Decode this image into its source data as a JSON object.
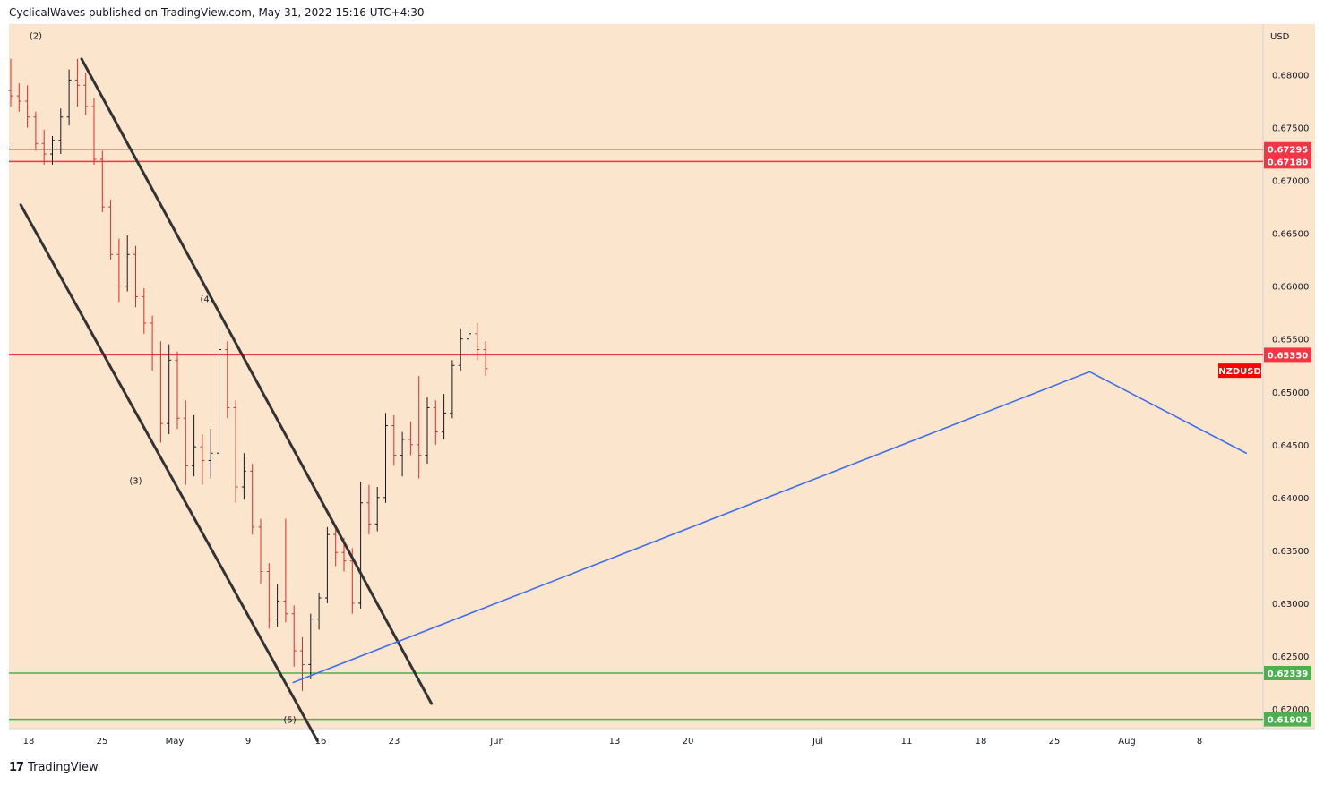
{
  "header": {
    "text": "CyclicalWaves published on TradingView.com, May 31, 2022 15:16 UTC+4:30"
  },
  "footer": {
    "logo": "17",
    "brand": "TradingView"
  },
  "chart_data": {
    "type": "candlestick",
    "symbol": "NZDUSD",
    "currency": "USD",
    "ylim": [
      0.617,
      0.688
    ],
    "y_ticks": [
      "0.68000",
      "0.67500",
      "0.67000",
      "0.66500",
      "0.66000",
      "0.65500",
      "0.65000",
      "0.64500",
      "0.64000",
      "0.63500",
      "0.63000",
      "0.62500",
      "0.62000"
    ],
    "x_ticks": [
      "18",
      "25",
      "May",
      "9",
      "16",
      "23",
      "Jun",
      "13",
      "20",
      "Jul",
      "11",
      "18",
      "25",
      "Aug",
      "8"
    ],
    "price_levels": [
      {
        "value": 0.67295,
        "label": "0.67295",
        "color": "#f23645"
      },
      {
        "value": 0.6718,
        "label": "0.67180",
        "color": "#f23645"
      },
      {
        "value": 0.6535,
        "label": "0.65350",
        "color": "#f23645"
      },
      {
        "value": 0.62339,
        "label": "0.62339",
        "color": "#4caf50"
      },
      {
        "value": 0.61902,
        "label": "0.61902",
        "color": "#4caf50"
      }
    ],
    "symbol_badge": {
      "label": "NZDUSD",
      "value": 0.652,
      "color": "#ff0000"
    },
    "wave_labels": [
      {
        "label": "(2)",
        "day": 3,
        "value": 0.6834
      },
      {
        "label": "(3)",
        "day": 15,
        "value": 0.6413
      },
      {
        "label": "(4)",
        "day": 23.5,
        "value": 0.6585
      },
      {
        "label": "(5)",
        "day": 33.5,
        "value": 0.6187
      }
    ],
    "trendlines": [
      {
        "name": "channel-upper",
        "from": [
          8.5,
          0.6815
        ],
        "to": [
          50.5,
          0.6205
        ],
        "color": "#333333"
      },
      {
        "name": "channel-lower",
        "from": [
          1.2,
          0.6677
        ],
        "to": [
          36.8,
          0.617
        ],
        "color": "#333333"
      },
      {
        "name": "projection-up",
        "from": [
          33.9,
          0.6225
        ],
        "to": [
          129.5,
          0.6519
        ],
        "color": "#3f6ee8"
      },
      {
        "name": "projection-down",
        "from": [
          129.5,
          0.6519
        ],
        "to": [
          148.3,
          0.6442
        ],
        "color": "#3f6ee8"
      }
    ],
    "candles": [
      {
        "o": 0.6785,
        "h": 0.6815,
        "l": 0.677,
        "c": 0.678
      },
      {
        "o": 0.678,
        "h": 0.6792,
        "l": 0.6765,
        "c": 0.6775
      },
      {
        "o": 0.6775,
        "h": 0.679,
        "l": 0.675,
        "c": 0.676
      },
      {
        "o": 0.676,
        "h": 0.6765,
        "l": 0.6728,
        "c": 0.6735
      },
      {
        "o": 0.6735,
        "h": 0.6748,
        "l": 0.6715,
        "c": 0.6725
      },
      {
        "o": 0.6725,
        "h": 0.6742,
        "l": 0.6715,
        "c": 0.6738
      },
      {
        "o": 0.6738,
        "h": 0.6768,
        "l": 0.6725,
        "c": 0.676
      },
      {
        "o": 0.676,
        "h": 0.6805,
        "l": 0.6752,
        "c": 0.6795
      },
      {
        "o": 0.6795,
        "h": 0.6815,
        "l": 0.677,
        "c": 0.679
      },
      {
        "o": 0.679,
        "h": 0.6802,
        "l": 0.6762,
        "c": 0.677
      },
      {
        "o": 0.677,
        "h": 0.6778,
        "l": 0.6715,
        "c": 0.672
      },
      {
        "o": 0.672,
        "h": 0.6728,
        "l": 0.667,
        "c": 0.6675
      },
      {
        "o": 0.6675,
        "h": 0.6682,
        "l": 0.6625,
        "c": 0.663
      },
      {
        "o": 0.663,
        "h": 0.6645,
        "l": 0.6585,
        "c": 0.66
      },
      {
        "o": 0.66,
        "h": 0.6648,
        "l": 0.6595,
        "c": 0.663
      },
      {
        "o": 0.663,
        "h": 0.6638,
        "l": 0.658,
        "c": 0.659
      },
      {
        "o": 0.659,
        "h": 0.6598,
        "l": 0.6555,
        "c": 0.6565
      },
      {
        "o": 0.6565,
        "h": 0.6572,
        "l": 0.652,
        "c": 0.6535
      },
      {
        "o": 0.6535,
        "h": 0.6548,
        "l": 0.6452,
        "c": 0.647
      },
      {
        "o": 0.647,
        "h": 0.6545,
        "l": 0.646,
        "c": 0.653
      },
      {
        "o": 0.653,
        "h": 0.6538,
        "l": 0.6465,
        "c": 0.6475
      },
      {
        "o": 0.6475,
        "h": 0.6492,
        "l": 0.6412,
        "c": 0.643
      },
      {
        "o": 0.643,
        "h": 0.6478,
        "l": 0.642,
        "c": 0.6448
      },
      {
        "o": 0.6448,
        "h": 0.646,
        "l": 0.6412,
        "c": 0.6435
      },
      {
        "o": 0.6435,
        "h": 0.6465,
        "l": 0.6418,
        "c": 0.6442
      },
      {
        "o": 0.6442,
        "h": 0.657,
        "l": 0.6438,
        "c": 0.654
      },
      {
        "o": 0.654,
        "h": 0.6548,
        "l": 0.6475,
        "c": 0.6485
      },
      {
        "o": 0.6485,
        "h": 0.6492,
        "l": 0.6395,
        "c": 0.641
      },
      {
        "o": 0.641,
        "h": 0.6442,
        "l": 0.6398,
        "c": 0.6425
      },
      {
        "o": 0.6425,
        "h": 0.6432,
        "l": 0.6365,
        "c": 0.6372
      },
      {
        "o": 0.6372,
        "h": 0.638,
        "l": 0.6318,
        "c": 0.633
      },
      {
        "o": 0.633,
        "h": 0.6338,
        "l": 0.6276,
        "c": 0.6285
      },
      {
        "o": 0.6285,
        "h": 0.6318,
        "l": 0.6278,
        "c": 0.6302
      },
      {
        "o": 0.6302,
        "h": 0.638,
        "l": 0.6282,
        "c": 0.629
      },
      {
        "o": 0.629,
        "h": 0.6298,
        "l": 0.624,
        "c": 0.6255
      },
      {
        "o": 0.6255,
        "h": 0.6268,
        "l": 0.6217,
        "c": 0.6242
      },
      {
        "o": 0.6242,
        "h": 0.629,
        "l": 0.6228,
        "c": 0.6285
      },
      {
        "o": 0.6285,
        "h": 0.631,
        "l": 0.6275,
        "c": 0.6305
      },
      {
        "o": 0.6305,
        "h": 0.6372,
        "l": 0.63,
        "c": 0.6365
      },
      {
        "o": 0.6365,
        "h": 0.6372,
        "l": 0.6335,
        "c": 0.6348
      },
      {
        "o": 0.6348,
        "h": 0.6362,
        "l": 0.633,
        "c": 0.634
      },
      {
        "o": 0.634,
        "h": 0.6352,
        "l": 0.629,
        "c": 0.63
      },
      {
        "o": 0.63,
        "h": 0.6415,
        "l": 0.6295,
        "c": 0.6395
      },
      {
        "o": 0.6395,
        "h": 0.6412,
        "l": 0.6365,
        "c": 0.6375
      },
      {
        "o": 0.6375,
        "h": 0.641,
        "l": 0.6368,
        "c": 0.64
      },
      {
        "o": 0.64,
        "h": 0.648,
        "l": 0.6395,
        "c": 0.6468
      },
      {
        "o": 0.6468,
        "h": 0.6478,
        "l": 0.643,
        "c": 0.644
      },
      {
        "o": 0.644,
        "h": 0.6462,
        "l": 0.642,
        "c": 0.6455
      },
      {
        "o": 0.6455,
        "h": 0.6472,
        "l": 0.644,
        "c": 0.645
      },
      {
        "o": 0.645,
        "h": 0.6515,
        "l": 0.6418,
        "c": 0.644
      },
      {
        "o": 0.644,
        "h": 0.6495,
        "l": 0.6432,
        "c": 0.6485
      },
      {
        "o": 0.6485,
        "h": 0.6492,
        "l": 0.645,
        "c": 0.6462
      },
      {
        "o": 0.6462,
        "h": 0.6498,
        "l": 0.6455,
        "c": 0.648
      },
      {
        "o": 0.648,
        "h": 0.653,
        "l": 0.6475,
        "c": 0.6525
      },
      {
        "o": 0.6525,
        "h": 0.656,
        "l": 0.652,
        "c": 0.655
      },
      {
        "o": 0.655,
        "h": 0.6562,
        "l": 0.6535,
        "c": 0.6555
      },
      {
        "o": 0.6555,
        "h": 0.6565,
        "l": 0.653,
        "c": 0.654
      },
      {
        "o": 0.654,
        "h": 0.6548,
        "l": 0.6515,
        "c": 0.6522
      }
    ]
  }
}
